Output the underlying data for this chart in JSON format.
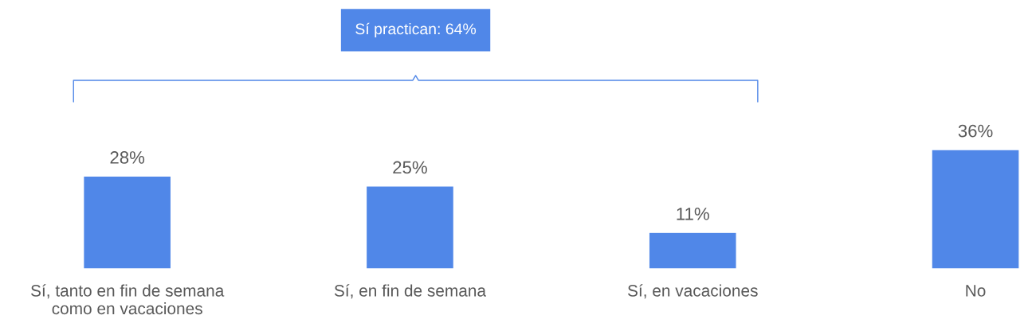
{
  "chart_data": {
    "type": "bar",
    "categories": [
      "Sí, tanto en fin de semana\ncomo en vacaciones",
      "Sí, en fin de semana",
      "Sí, en vacaciones",
      "No"
    ],
    "values": [
      28,
      25,
      11,
      36
    ],
    "color": "#5087e8",
    "value_labels": [
      "28%",
      "25%",
      "11%",
      "36%"
    ],
    "annotations": [
      "Sí practican: 64%"
    ],
    "grid": false,
    "legend": false
  }
}
